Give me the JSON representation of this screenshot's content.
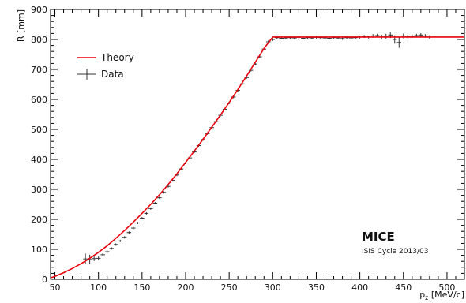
{
  "chart_data": {
    "type": "line",
    "xlabel": "p_z [MeV/c]",
    "xlabel_main": "p",
    "xlabel_sub": "z",
    "xlabel_unit": " [MeV/c]",
    "ylabel": "R [mm]",
    "xlim": [
      45,
      520
    ],
    "ylim": [
      0,
      900
    ],
    "xticks": [
      50,
      100,
      150,
      200,
      250,
      300,
      350,
      400,
      450,
      500
    ],
    "yticks": [
      0,
      100,
      200,
      300,
      400,
      500,
      600,
      700,
      800,
      900
    ],
    "grid": false,
    "legend_position": "top-left",
    "annotation": {
      "title": "MICE",
      "subtitle": "ISIS Cycle 2013/03",
      "position": "bottom-right"
    },
    "series": [
      {
        "name": "Theory",
        "color": "#e8000b",
        "style": "line",
        "x": [
          45,
          50,
          60,
          70,
          80,
          90,
          100,
          110,
          120,
          130,
          140,
          150,
          160,
          170,
          180,
          190,
          200,
          210,
          220,
          230,
          240,
          250,
          260,
          270,
          280,
          290,
          300,
          350,
          400,
          450,
          500,
          520
        ],
        "y": [
          5,
          10,
          22,
          36,
          52,
          70,
          90,
          112,
          137,
          163,
          191,
          220,
          250,
          282,
          316,
          352,
          390,
          428,
          467,
          507,
          548,
          590,
          633,
          678,
          724,
          770,
          808,
          808,
          808,
          808,
          808,
          808
        ]
      },
      {
        "name": "Data",
        "color": "#333333",
        "style": "errorbar",
        "x": [
          85,
          90,
          95,
          100,
          105,
          110,
          115,
          120,
          125,
          130,
          135,
          140,
          145,
          150,
          155,
          160,
          165,
          170,
          175,
          180,
          185,
          190,
          195,
          200,
          205,
          210,
          215,
          220,
          225,
          230,
          235,
          240,
          245,
          250,
          255,
          260,
          265,
          270,
          275,
          280,
          285,
          290,
          295,
          300,
          305,
          310,
          315,
          320,
          325,
          330,
          335,
          340,
          345,
          350,
          355,
          360,
          365,
          370,
          375,
          380,
          385,
          390,
          395,
          400,
          405,
          410,
          415,
          420,
          425,
          430,
          435,
          440,
          445,
          450,
          455,
          460,
          465,
          470,
          475,
          480
        ],
        "y": [
          68,
          66,
          69,
          70,
          82,
          92,
          103,
          116,
          128,
          140,
          156,
          171,
          188,
          204,
          220,
          236,
          254,
          272,
          290,
          310,
          330,
          348,
          368,
          388,
          405,
          425,
          446,
          466,
          486,
          506,
          526,
          547,
          567,
          588,
          608,
          630,
          652,
          673,
          697,
          718,
          742,
          768,
          792,
          800,
          806,
          804,
          805,
          806,
          805,
          807,
          804,
          806,
          805,
          807,
          806,
          805,
          804,
          806,
          805,
          803,
          806,
          805,
          806,
          808,
          810,
          808,
          812,
          813,
          808,
          811,
          815,
          800,
          790,
          812,
          810,
          811,
          813,
          815,
          812,
          808
        ],
        "yerr": [
          18,
          16,
          8,
          6,
          5,
          5,
          4,
          4,
          4,
          4,
          4,
          4,
          4,
          4,
          4,
          4,
          4,
          4,
          4,
          4,
          4,
          4,
          4,
          4,
          4,
          4,
          4,
          4,
          4,
          4,
          4,
          4,
          4,
          4,
          4,
          4,
          4,
          4,
          4,
          4,
          4,
          4,
          5,
          5,
          4,
          4,
          4,
          4,
          4,
          4,
          4,
          4,
          4,
          4,
          4,
          4,
          4,
          4,
          4,
          4,
          4,
          4,
          4,
          5,
          5,
          5,
          6,
          6,
          8,
          8,
          10,
          14,
          18,
          8,
          6,
          6,
          6,
          6,
          6,
          6
        ],
        "xerr": 2.5
      }
    ]
  }
}
